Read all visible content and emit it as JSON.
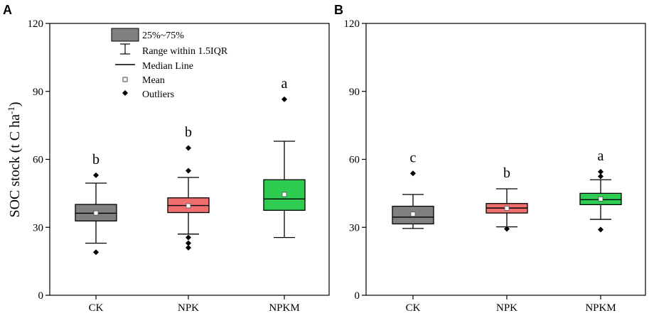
{
  "chart_data": [
    {
      "panel_label": "A",
      "type": "box",
      "ylabel": "SOC stock (t C ha",
      "ylabel_sup": "-1",
      "ylabel_end": ")",
      "ylim": [
        0,
        120
      ],
      "yticks": [
        0,
        30,
        60,
        90,
        120
      ],
      "categories": [
        "CK",
        "NPK",
        "NPKM"
      ],
      "colors": [
        "#808080",
        "#f07070",
        "#2ecc50"
      ],
      "boxes": [
        {
          "category": "CK",
          "q1": 32.8,
          "median": 36.2,
          "q3": 40.1,
          "whisker_low": 23.0,
          "whisker_high": 49.5,
          "mean": 36.3,
          "outliers": [
            19.0,
            53.0
          ],
          "letter": "b"
        },
        {
          "category": "NPK",
          "q1": 36.5,
          "median": 39.6,
          "q3": 43.0,
          "whisker_low": 27.0,
          "whisker_high": 52.0,
          "mean": 39.5,
          "outliers": [
            21.0,
            23.0,
            25.5,
            55.0,
            65.0
          ],
          "letter": "b"
        },
        {
          "category": "NPKM",
          "q1": 37.5,
          "median": 42.5,
          "q3": 51.0,
          "whisker_low": 25.5,
          "whisker_high": 68.0,
          "mean": 44.5,
          "outliers": [
            86.5
          ],
          "letter": "a"
        }
      ],
      "legend": {
        "position": "top-center",
        "entries": [
          "25%~75%",
          "Range within 1.5IQR",
          "Median Line",
          "Mean",
          "Outliers"
        ]
      }
    },
    {
      "panel_label": "B",
      "type": "box",
      "ylim": [
        0,
        120
      ],
      "yticks": [
        0,
        30,
        60,
        90,
        120
      ],
      "categories": [
        "CK",
        "NPK",
        "NPKM"
      ],
      "colors": [
        "#808080",
        "#f07070",
        "#2ecc50"
      ],
      "boxes": [
        {
          "category": "CK",
          "q1": 31.5,
          "median": 34.5,
          "q3": 39.3,
          "whisker_low": 29.5,
          "whisker_high": 44.5,
          "mean": 35.8,
          "outliers": [
            53.8
          ],
          "letter": "c"
        },
        {
          "category": "NPK",
          "q1": 36.3,
          "median": 38.5,
          "q3": 40.5,
          "whisker_low": 30.2,
          "whisker_high": 47.0,
          "mean": 38.4,
          "outliers": [
            29.3
          ],
          "letter": "b"
        },
        {
          "category": "NPKM",
          "q1": 40.0,
          "median": 42.2,
          "q3": 45.0,
          "whisker_low": 33.5,
          "whisker_high": 51.0,
          "mean": 42.5,
          "outliers": [
            29.0,
            52.5,
            54.5
          ],
          "letter": "a"
        }
      ]
    }
  ]
}
